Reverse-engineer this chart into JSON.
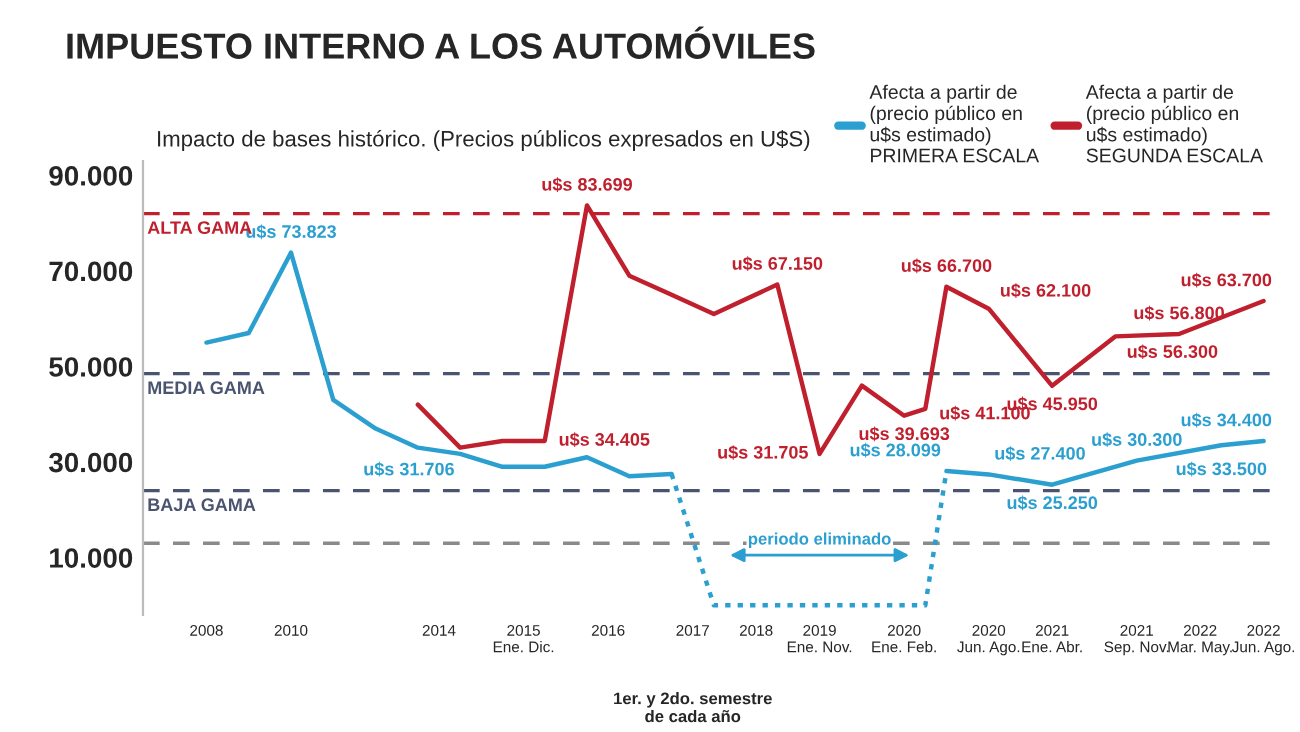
{
  "chart_data": {
    "type": "line",
    "title": "IMPUESTO INTERNO A LOS AUTOMÓVILES",
    "subtitle": "Impacto de bases histórico. (Precios públicos expresados en U$S)",
    "categories": [
      "2008",
      null,
      null,
      null,
      "2010",
      null,
      null,
      null,
      null,
      null,
      null,
      "2014",
      null,
      null,
      null,
      "2015\nEne. Dic.",
      null,
      null,
      null,
      "2016",
      null,
      null,
      null,
      "2017",
      null,
      null,
      "2018",
      null,
      null,
      "2019\nEne. Nov.",
      null,
      null,
      null,
      "2020\nEne. Feb.",
      null,
      null,
      null,
      "2020\nJun. Ago.",
      null,
      null,
      "2021\nEne. Abr.",
      null,
      null,
      null,
      "2021\nSep. Nov.",
      null,
      null,
      "2022\nMar. May.",
      null,
      null,
      "2022\nJun. Ago."
    ],
    "series": [
      {
        "name": "Afecta a partir de\n(precio público en\nu$s estimado)\nPRIMERA ESCALA",
        "color": "#2a9fd0",
        "values": [
          55000,
          null,
          57000,
          null,
          73823,
          null,
          43000,
          null,
          37000,
          null,
          33000,
          null,
          31706,
          null,
          29000,
          null,
          29000,
          null,
          31000,
          null,
          27000,
          null,
          27500,
          null,
          null,
          null,
          null,
          null,
          null,
          null,
          null,
          null,
          null,
          null,
          null,
          null,
          null,
          null,
          null,
          null,
          null,
          null,
          null,
          null,
          null,
          null,
          null,
          null,
          null,
          null,
          null
        ],
        "value_labels": [
          null,
          null,
          null,
          null,
          "u$s 73.823",
          null,
          null,
          null,
          null,
          null,
          null,
          null,
          "u$s 31.706",
          null,
          null,
          null,
          null,
          null,
          null,
          null,
          null,
          null,
          null,
          null,
          null,
          null,
          null,
          null,
          null,
          null,
          null,
          null,
          null,
          null,
          null,
          null,
          null,
          null,
          null,
          null,
          null,
          null,
          null,
          null,
          null,
          null,
          null,
          null,
          null,
          null,
          null
        ]
      },
      {
        "color": "#2a9fd0",
        "values": [
          null,
          null,
          null,
          null,
          null,
          null,
          null,
          null,
          null,
          null,
          null,
          null,
          null,
          null,
          null,
          null,
          null,
          null,
          null,
          null,
          null,
          null,
          null,
          null,
          null,
          null,
          null,
          null,
          null,
          null,
          null,
          null,
          null,
          null,
          null,
          28099,
          null,
          27400,
          null,
          null,
          25250,
          null,
          null,
          null,
          30300,
          null,
          null,
          null,
          33500,
          null,
          34400
        ],
        "value_labels": [
          null,
          null,
          null,
          null,
          null,
          null,
          null,
          null,
          null,
          null,
          null,
          null,
          null,
          null,
          null,
          null,
          null,
          null,
          null,
          null,
          null,
          null,
          null,
          null,
          null,
          null,
          null,
          null,
          null,
          null,
          null,
          null,
          null,
          null,
          null,
          "u$s 28.099",
          null,
          "u$s 27.400",
          null,
          null,
          "u$s 25.250",
          null,
          null,
          null,
          "u$s 30.300",
          null,
          null,
          null,
          "u$s 33.500",
          null,
          "u$s 34.400"
        ]
      },
      {
        "color": "#2a9fd0",
        "line_style": "dotted",
        "values": [
          null,
          null,
          null,
          null,
          null,
          null,
          null,
          null,
          null,
          null,
          null,
          null,
          null,
          null,
          null,
          null,
          null,
          null,
          null,
          null,
          null,
          null,
          27500,
          null,
          0,
          null,
          null,
          null,
          null,
          null,
          null,
          null,
          null,
          null,
          0,
          28099,
          null,
          null,
          null,
          null,
          null,
          null,
          null,
          null,
          null,
          null,
          null,
          null,
          null,
          null,
          null
        ]
      },
      {
        "name": "Afecta a partir de\n(precio público en\nu$s estimado)\nSEGUNDA ESCALA",
        "color": "#c0202e",
        "values": [
          null,
          null,
          null,
          null,
          null,
          null,
          null,
          null,
          null,
          null,
          42000,
          null,
          33000,
          null,
          34400,
          null,
          34405,
          null,
          83699,
          null,
          69000,
          null,
          65000,
          null,
          61000,
          null,
          null,
          67150,
          null,
          31705,
          null,
          46000,
          null,
          39693,
          41100,
          66700,
          null,
          62100,
          null,
          null,
          45950,
          null,
          null,
          56300,
          null,
          null,
          56800,
          null,
          null,
          null,
          63700
        ],
        "value_labels": [
          null,
          null,
          null,
          null,
          null,
          null,
          null,
          null,
          null,
          null,
          null,
          null,
          null,
          null,
          null,
          null,
          "u$s 34.405",
          null,
          "u$s 83.699",
          null,
          null,
          null,
          null,
          null,
          null,
          null,
          null,
          "u$s 67.150",
          null,
          "u$s 31.705",
          null,
          null,
          null,
          "u$s 39.693",
          "u$s 41.100",
          "u$s 66.700",
          null,
          "u$s 62.100",
          null,
          null,
          "u$s 45.950",
          null,
          null,
          "u$s 56.300",
          null,
          null,
          "u$s 56.800",
          null,
          null,
          null,
          "u$s 63.700"
        ]
      }
    ],
    "ylim": [
      -2000,
      93000
    ],
    "yticks": [
      {
        "value": 10000,
        "label": "10.000"
      },
      {
        "value": 30000,
        "label": "30.000"
      },
      {
        "value": 50000,
        "label": "50.000"
      },
      {
        "value": 70000,
        "label": "70.000"
      },
      {
        "value": 90000,
        "label": "90.000"
      }
    ],
    "ref_lines": [
      {
        "axis": "y",
        "value": 82000,
        "label": "ALTA GAMA",
        "color": "#c0202e",
        "line_style": "dashed"
      },
      {
        "axis": "y",
        "value": 48500,
        "label": "MEDIA GAMA",
        "color": "#4a5470",
        "line_style": "dashed"
      },
      {
        "axis": "y",
        "value": 24000,
        "label": "BAJA GAMA",
        "color": "#4a5470",
        "line_style": "dashed"
      },
      {
        "axis": "y",
        "value": 13000,
        "color": "#8a8a8a",
        "line_style": "dashed"
      }
    ],
    "annotations": [
      {
        "text": "periodo eliminado"
      },
      "1er. y 2do. semestre\nde cada año"
    ],
    "legend": "top right",
    "grid": false,
    "marker": "none"
  }
}
